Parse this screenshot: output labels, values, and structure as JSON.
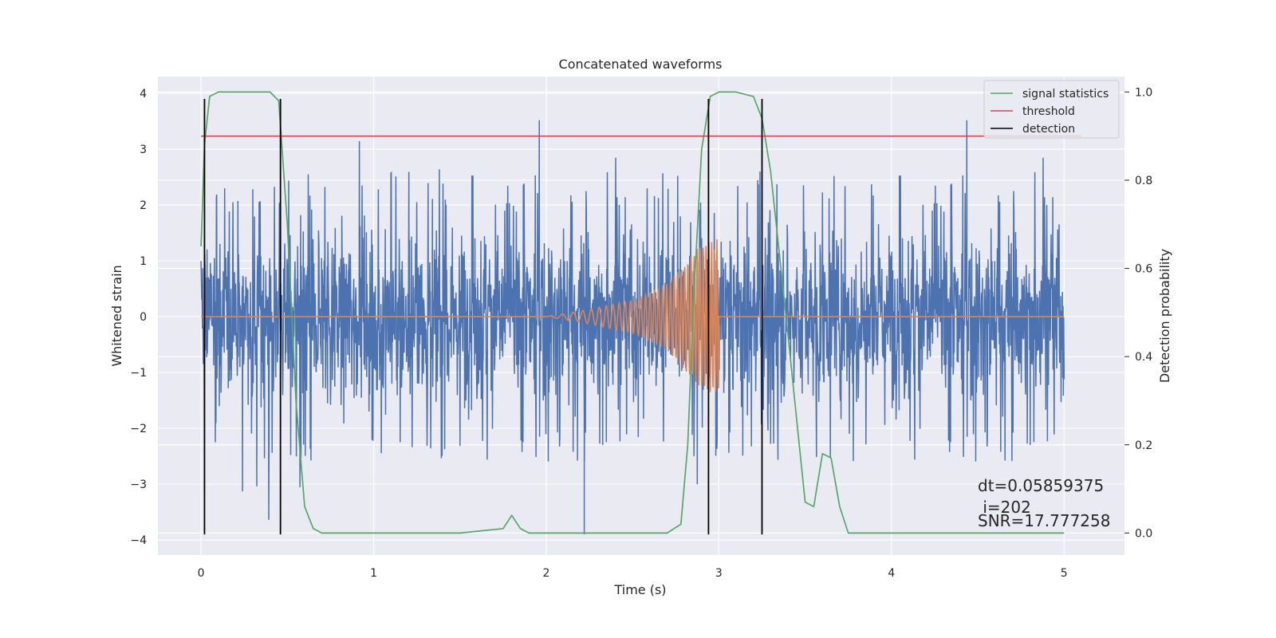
{
  "chart_data": {
    "type": "line",
    "title": "Concatenated waveforms",
    "xlabel": "Time (s)",
    "ylabel": "Whitened strain",
    "y2label": "Detection probability",
    "xlim": [
      -0.25,
      5.35
    ],
    "ylim": [
      -4.27,
      4.3
    ],
    "y2lim": [
      -0.05,
      1.035
    ],
    "x_ticks": [
      "0",
      "1",
      "2",
      "3",
      "4",
      "5"
    ],
    "y_ticks": [
      "4",
      "3",
      "2",
      "1",
      "0",
      "−1",
      "−2",
      "−3",
      "−4"
    ],
    "y2_ticks": [
      "1.0",
      "0.8",
      "0.6",
      "0.4",
      "0.2",
      "0.0"
    ],
    "grid": true,
    "legend_position": "top-right",
    "legend": [
      "signal statistics",
      "threshold",
      "detection"
    ],
    "colors": {
      "strain": "#4c72b0",
      "template": "#dd8452",
      "signal_statistics": "#55a868",
      "threshold": "#c44e52",
      "detection": "#000000",
      "background": "#eaeaf2",
      "grid": "#ffffff"
    },
    "series": [
      {
        "name": "signal statistics",
        "axis": "right",
        "x": [
          0.0,
          0.02,
          0.05,
          0.1,
          0.2,
          0.4,
          0.45,
          0.5,
          0.55,
          0.6,
          0.65,
          0.7,
          1.0,
          1.5,
          1.75,
          1.8,
          1.85,
          1.9,
          2.2,
          2.5,
          2.7,
          2.78,
          2.82,
          2.85,
          2.9,
          2.95,
          3.0,
          3.1,
          3.2,
          3.25,
          3.3,
          3.4,
          3.5,
          3.55,
          3.6,
          3.65,
          3.7,
          3.75,
          4.0,
          4.5,
          5.0
        ],
        "values": [
          0.65,
          0.88,
          0.99,
          1.0,
          1.0,
          1.0,
          0.98,
          0.7,
          0.3,
          0.06,
          0.01,
          0.0,
          0.0,
          0.0,
          0.01,
          0.04,
          0.01,
          0.0,
          0.0,
          0.0,
          0.0,
          0.02,
          0.2,
          0.5,
          0.87,
          0.99,
          1.0,
          1.0,
          0.99,
          0.94,
          0.82,
          0.45,
          0.07,
          0.06,
          0.18,
          0.17,
          0.06,
          0.0,
          0.0,
          0.0,
          0.0
        ]
      },
      {
        "name": "threshold",
        "axis": "right",
        "x": [
          0.0,
          5.1
        ],
        "values": [
          0.9,
          0.9
        ]
      }
    ],
    "strain": {
      "x_range": [
        0.0,
        5.0
      ],
      "amplitude_typical": 2.0,
      "amplitude_peak": 3.9,
      "dip_at": [
        [
          0.02,
          -3.1
        ],
        [
          2.22,
          -3.9
        ]
      ]
    },
    "template": {
      "x": [
        0.0,
        2.0,
        2.2,
        2.5,
        2.7,
        2.9,
        3.0,
        5.0
      ],
      "amplitude": [
        0.0,
        0.0,
        0.1,
        0.3,
        0.6,
        1.3,
        1.4,
        0.0
      ]
    },
    "detections": [
      0.02,
      0.46,
      2.94,
      3.25
    ],
    "annotations": {
      "dt": "dt=0.05859375",
      "i": " i=202",
      "snr": "SNR=17.777258"
    },
    "annotation_anchor": [
      4.5,
      -3.05
    ]
  }
}
